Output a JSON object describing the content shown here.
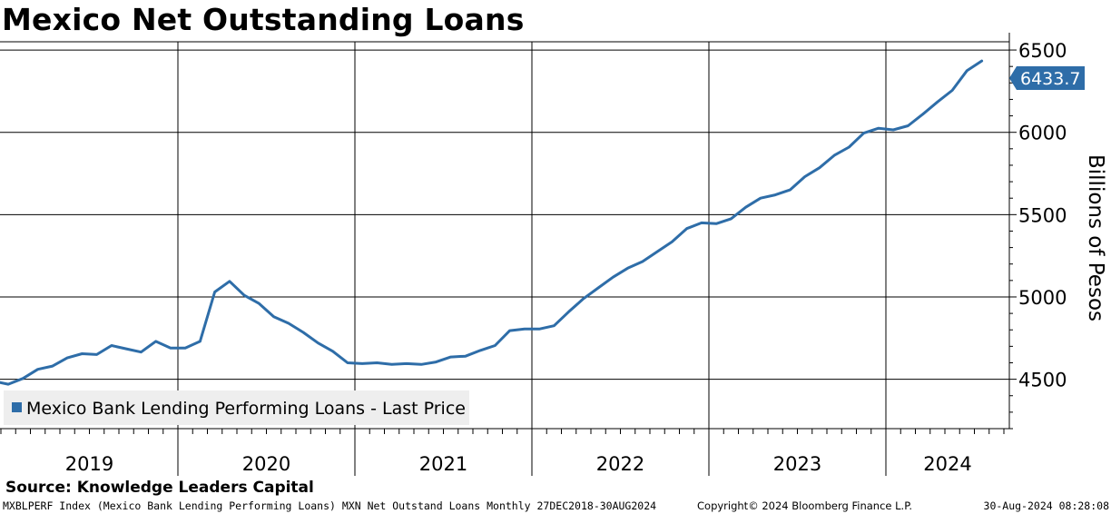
{
  "title": "Mexico Net Outstanding Loans",
  "source": "Source: Knowledge Leaders Capital",
  "footer": {
    "left": "MXBLPERF Index (Mexico Bank Lending Performing Loans) MXN Net Outstand Loans  Monthly 27DEC2018-30AUG2024",
    "middle": "Copyright© 2024 Bloomberg Finance L.P.",
    "right": "30-Aug-2024 08:28:08"
  },
  "colors": {
    "line": "#2e6da8",
    "last_price_tag": "#2e6da8",
    "legend_bg": "#eeeeee"
  },
  "chart_data": {
    "type": "line",
    "title": "Mexico Net Outstanding Loans",
    "ylabel": "Billions of Pesos",
    "xlabel": "",
    "x_tick_labels": [
      "2019",
      "2020",
      "2021",
      "2022",
      "2023",
      "2024"
    ],
    "y_tick_labels": [
      "4500",
      "5000",
      "5500",
      "6000",
      "6500"
    ],
    "ylim": [
      4200,
      6550
    ],
    "y_axis_position": "right",
    "grid": true,
    "legend_position": "bottom-left",
    "last_value_label": "6433.7",
    "series": [
      {
        "name": "Mexico Bank Lending Performing Loans - Last Price",
        "x": [
          "2018-12",
          "2019-01",
          "2019-02",
          "2019-03",
          "2019-04",
          "2019-05",
          "2019-06",
          "2019-07",
          "2019-08",
          "2019-09",
          "2019-10",
          "2019-11",
          "2019-12",
          "2020-01",
          "2020-02",
          "2020-03",
          "2020-04",
          "2020-05",
          "2020-06",
          "2020-07",
          "2020-08",
          "2020-09",
          "2020-10",
          "2020-11",
          "2020-12",
          "2021-01",
          "2021-02",
          "2021-03",
          "2021-04",
          "2021-05",
          "2021-06",
          "2021-07",
          "2021-08",
          "2021-09",
          "2021-10",
          "2021-11",
          "2021-12",
          "2022-01",
          "2022-02",
          "2022-03",
          "2022-04",
          "2022-05",
          "2022-06",
          "2022-07",
          "2022-08",
          "2022-09",
          "2022-10",
          "2022-11",
          "2022-12",
          "2023-01",
          "2023-02",
          "2023-03",
          "2023-04",
          "2023-05",
          "2023-06",
          "2023-07",
          "2023-08",
          "2023-09",
          "2023-10",
          "2023-11",
          "2023-12",
          "2024-01",
          "2024-02",
          "2024-03",
          "2024-04",
          "2024-05",
          "2024-06",
          "2024-07"
        ],
        "values": [
          4480,
          4470,
          4505,
          4560,
          4580,
          4630,
          4655,
          4650,
          4705,
          4685,
          4665,
          4730,
          4690,
          4690,
          4730,
          5030,
          5095,
          5010,
          4960,
          4880,
          4840,
          4785,
          4720,
          4670,
          4600,
          4595,
          4600,
          4590,
          4595,
          4590,
          4605,
          4635,
          4640,
          4675,
          4705,
          4795,
          4805,
          4805,
          4825,
          4910,
          4990,
          5055,
          5120,
          5175,
          5215,
          5275,
          5335,
          5415,
          5450,
          5445,
          5475,
          5545,
          5600,
          5620,
          5650,
          5730,
          5785,
          5860,
          5910,
          5995,
          6025,
          6015,
          6040,
          6110,
          6185,
          6255,
          6375,
          6433.7
        ]
      }
    ]
  }
}
